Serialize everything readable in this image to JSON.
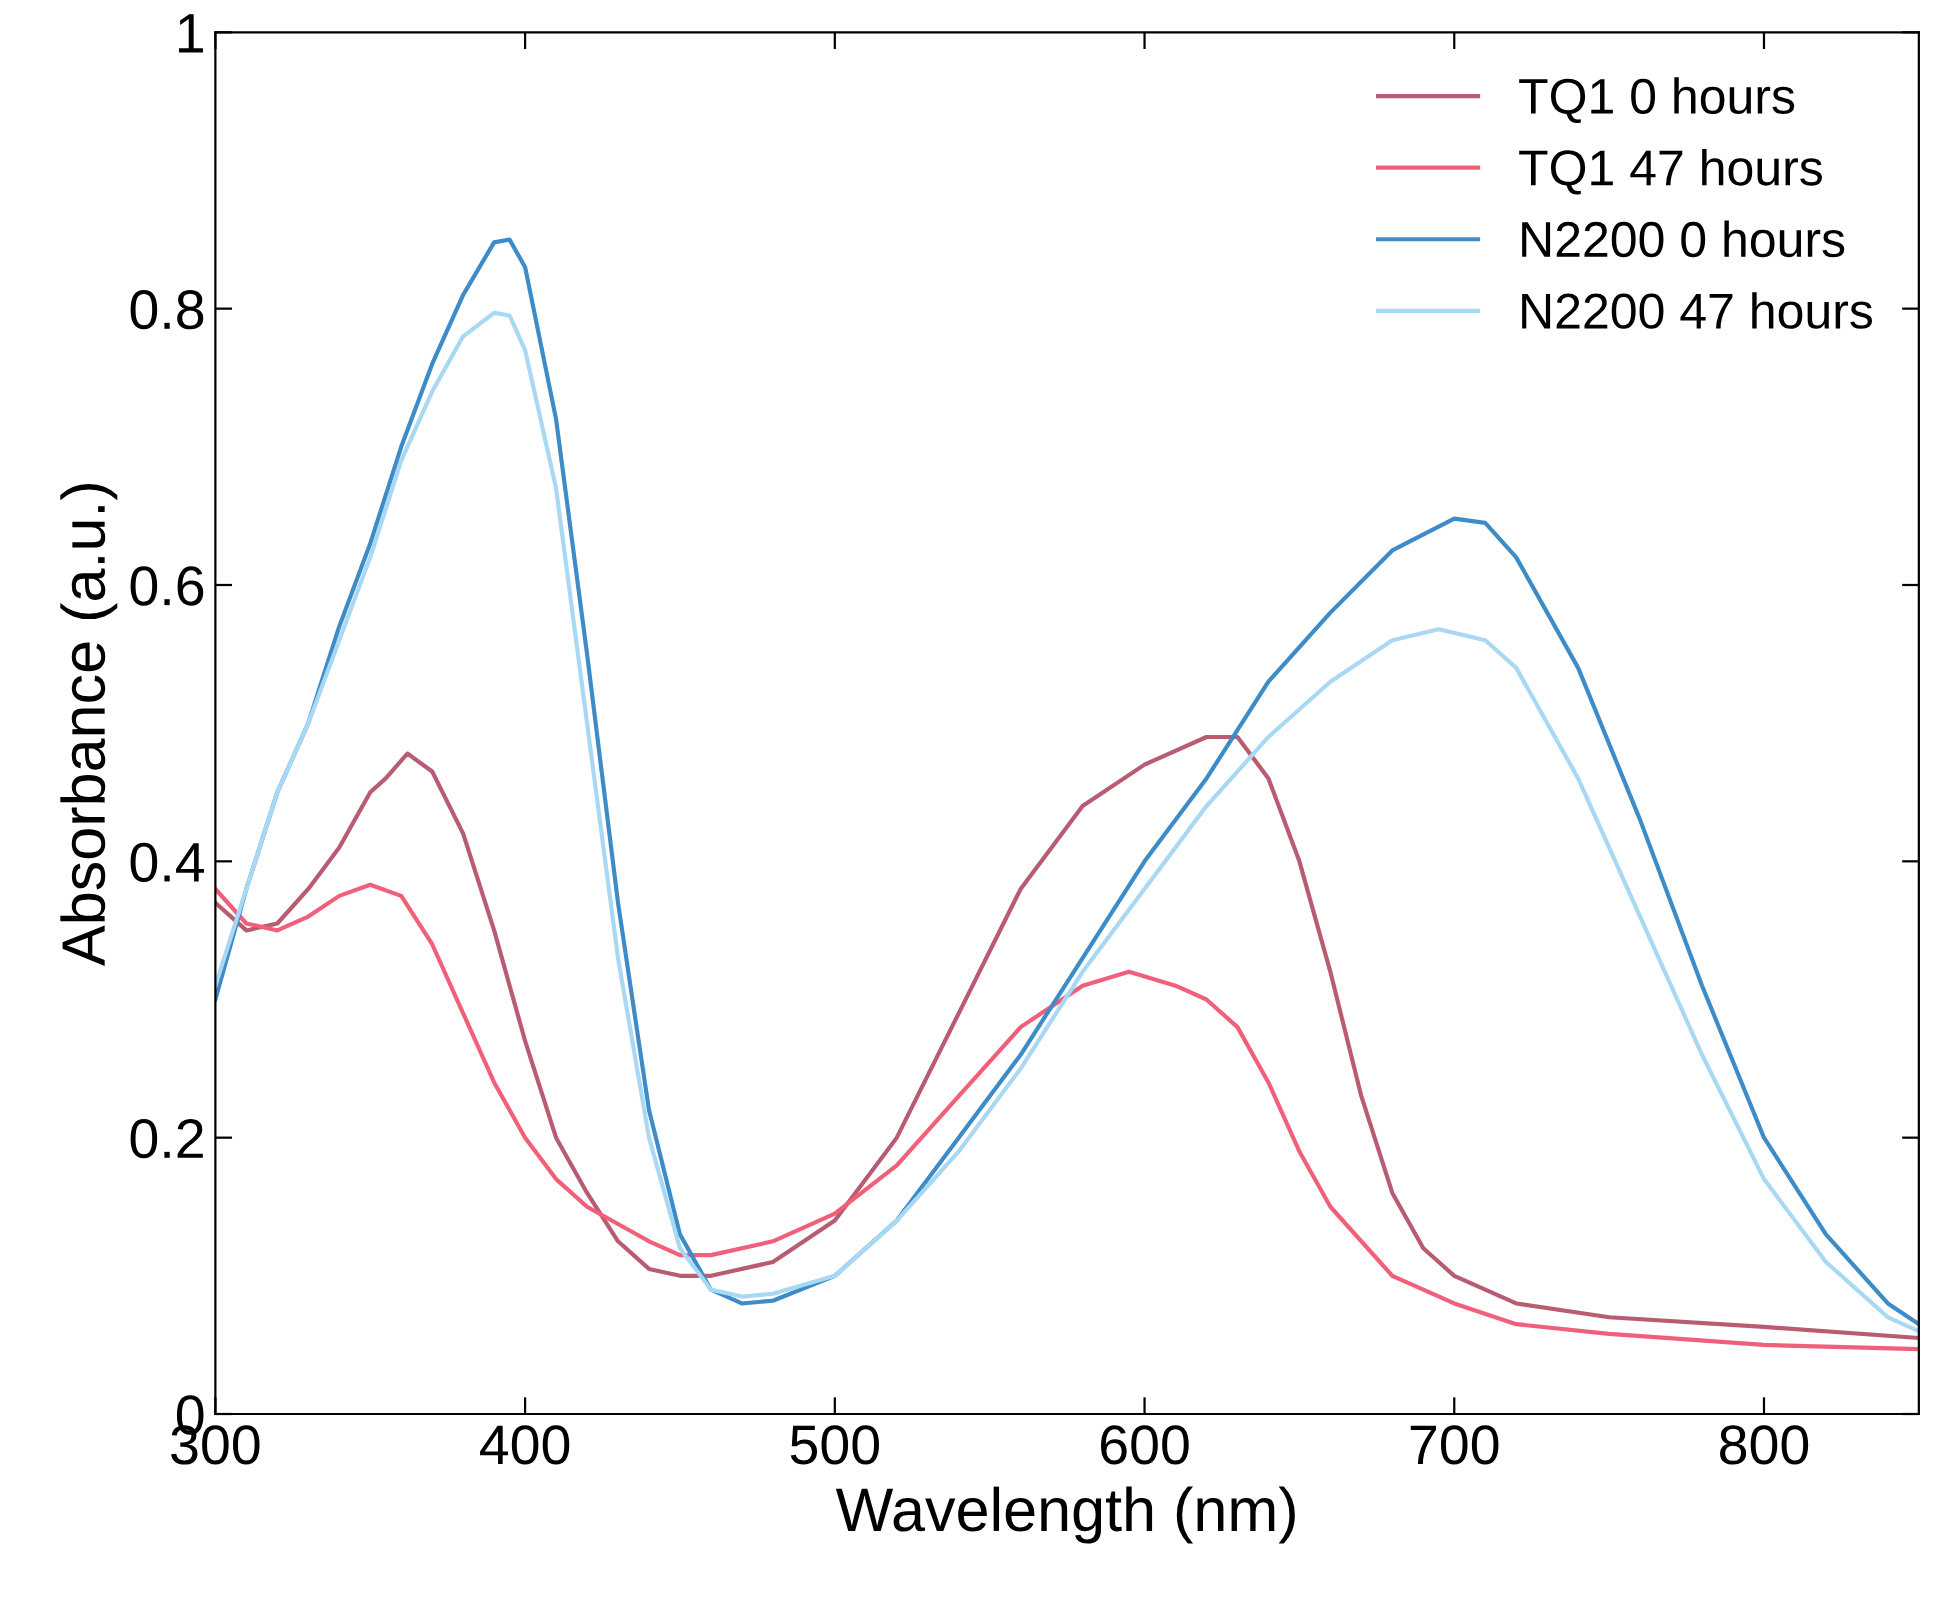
{
  "chart_data": {
    "type": "line",
    "xlabel": "Wavelength (nm)",
    "ylabel": "Absorbance (a.u.)",
    "xlim": [
      300,
      850
    ],
    "ylim": [
      0,
      1
    ],
    "xticks": [
      300,
      400,
      500,
      600,
      700,
      800
    ],
    "yticks": [
      0,
      0.2,
      0.4,
      0.6,
      0.8,
      1
    ],
    "grid": false,
    "legend": "top right",
    "series": [
      {
        "name": "TQ1 0 hours",
        "color": "#b85c72",
        "x": [
          300,
          310,
          320,
          330,
          340,
          350,
          355,
          362,
          370,
          380,
          390,
          400,
          410,
          420,
          430,
          440,
          450,
          460,
          480,
          500,
          520,
          540,
          560,
          580,
          600,
          620,
          630,
          640,
          650,
          660,
          670,
          680,
          690,
          700,
          720,
          750,
          800,
          850
        ],
        "values": [
          0.37,
          0.35,
          0.355,
          0.38,
          0.41,
          0.45,
          0.46,
          0.478,
          0.465,
          0.42,
          0.35,
          0.27,
          0.2,
          0.16,
          0.125,
          0.105,
          0.1,
          0.1,
          0.11,
          0.14,
          0.2,
          0.29,
          0.38,
          0.44,
          0.47,
          0.49,
          0.49,
          0.46,
          0.4,
          0.32,
          0.23,
          0.16,
          0.12,
          0.1,
          0.08,
          0.07,
          0.063,
          0.055
        ]
      },
      {
        "name": "TQ1 47 hours",
        "color": "#f0607a",
        "x": [
          300,
          310,
          320,
          330,
          340,
          350,
          360,
          370,
          380,
          390,
          400,
          410,
          420,
          440,
          450,
          460,
          480,
          500,
          520,
          540,
          560,
          580,
          595,
          610,
          620,
          630,
          640,
          650,
          660,
          680,
          700,
          720,
          750,
          800,
          850
        ],
        "values": [
          0.38,
          0.355,
          0.35,
          0.36,
          0.375,
          0.383,
          0.375,
          0.34,
          0.29,
          0.24,
          0.2,
          0.17,
          0.15,
          0.125,
          0.115,
          0.115,
          0.125,
          0.145,
          0.18,
          0.23,
          0.28,
          0.31,
          0.32,
          0.31,
          0.3,
          0.28,
          0.24,
          0.19,
          0.15,
          0.1,
          0.08,
          0.065,
          0.058,
          0.05,
          0.047
        ]
      },
      {
        "name": "N2200 0 hours",
        "color": "#3d8cc8",
        "x": [
          300,
          310,
          320,
          330,
          340,
          350,
          360,
          370,
          380,
          390,
          395,
          400,
          410,
          420,
          430,
          440,
          450,
          460,
          470,
          480,
          500,
          520,
          540,
          560,
          580,
          600,
          620,
          640,
          660,
          680,
          700,
          710,
          720,
          740,
          760,
          780,
          800,
          820,
          840,
          850
        ],
        "values": [
          0.3,
          0.38,
          0.45,
          0.5,
          0.57,
          0.63,
          0.7,
          0.76,
          0.81,
          0.848,
          0.85,
          0.83,
          0.72,
          0.55,
          0.37,
          0.22,
          0.13,
          0.09,
          0.08,
          0.082,
          0.1,
          0.14,
          0.2,
          0.26,
          0.33,
          0.4,
          0.46,
          0.53,
          0.58,
          0.625,
          0.648,
          0.645,
          0.62,
          0.54,
          0.43,
          0.31,
          0.2,
          0.13,
          0.08,
          0.065
        ]
      },
      {
        "name": "N2200 47 hours",
        "color": "#a8d8f4",
        "x": [
          300,
          310,
          320,
          330,
          340,
          350,
          360,
          370,
          380,
          390,
          395,
          400,
          410,
          420,
          430,
          440,
          450,
          460,
          470,
          480,
          500,
          520,
          540,
          560,
          580,
          600,
          620,
          640,
          660,
          680,
          695,
          710,
          720,
          740,
          760,
          780,
          800,
          820,
          840,
          850
        ],
        "values": [
          0.31,
          0.38,
          0.45,
          0.5,
          0.56,
          0.62,
          0.69,
          0.74,
          0.78,
          0.797,
          0.795,
          0.77,
          0.67,
          0.5,
          0.33,
          0.2,
          0.12,
          0.09,
          0.085,
          0.087,
          0.1,
          0.14,
          0.19,
          0.25,
          0.32,
          0.38,
          0.44,
          0.49,
          0.53,
          0.56,
          0.568,
          0.56,
          0.54,
          0.46,
          0.36,
          0.26,
          0.17,
          0.11,
          0.07,
          0.06
        ]
      }
    ]
  }
}
